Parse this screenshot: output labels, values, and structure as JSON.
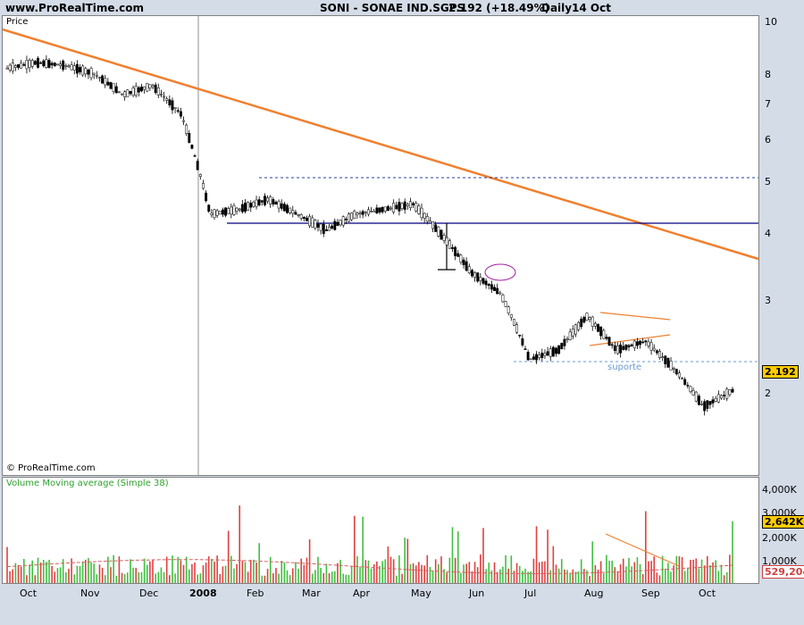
{
  "header": {
    "site": "www.ProRealTime.com",
    "instrument": "SONI - SONAE IND.SGPS",
    "quote": "2.192 (+18.49%)",
    "period": "Daily",
    "date": "14 Oct"
  },
  "price_panel": {
    "label": "Price",
    "copyright": "© ProRealTime.com",
    "last_price_tag": "2.192",
    "support_label": "suporte"
  },
  "volume_panel": {
    "label": "Volume Moving average (Simple 38)",
    "last_volume_tag": "2,642K",
    "ma_tag": "529,204"
  },
  "colors": {
    "background": "#d4dce8",
    "trendline": "#f08030",
    "support_line": "#000080",
    "support_dotted": "#6a9ad0",
    "volume_up": "#40c040",
    "volume_down": "#e04040",
    "ma_line": "#d06060",
    "tag_bg": "#ffcc00",
    "ma_tag_bg": "#ffffff"
  },
  "chart_data": [
    {
      "type": "candlestick",
      "title": "SONI - SONAE IND.SGPS",
      "ylabel": "Price",
      "y_scale": "log",
      "ylim": [
        1.55,
        10.5
      ],
      "y_ticks": [
        "10",
        "8",
        "7",
        "6",
        "5",
        "4",
        "3",
        "2"
      ],
      "x_ticks": [
        "Oct",
        "Nov",
        "Dec",
        "2008",
        "Feb",
        "Mar",
        "Apr",
        "May",
        "Jun",
        "Jul",
        "Aug",
        "Sep",
        "Oct"
      ],
      "x": [
        "2007-10-01",
        "2007-10-15",
        "2007-11-01",
        "2007-11-15",
        "2007-12-01",
        "2007-12-15",
        "2008-01-01",
        "2008-01-15",
        "2008-02-01",
        "2008-02-15",
        "2008-03-01",
        "2008-03-15",
        "2008-04-01",
        "2008-04-15",
        "2008-05-01",
        "2008-05-15",
        "2008-06-01",
        "2008-06-15",
        "2008-07-01",
        "2008-07-15",
        "2008-08-01",
        "2008-08-15",
        "2008-09-01",
        "2008-09-15",
        "2008-10-01",
        "2008-10-14"
      ],
      "close": [
        8.5,
        8.7,
        8.6,
        8.3,
        7.6,
        7.9,
        7.0,
        4.6,
        4.7,
        4.9,
        4.6,
        4.3,
        4.6,
        4.7,
        4.8,
        4.2,
        3.6,
        3.3,
        2.5,
        2.6,
        3.0,
        2.6,
        2.7,
        2.4,
        2.05,
        2.192
      ],
      "annotations": [
        {
          "type": "trendline",
          "from": [
            "2007-10-01",
            9.6
          ],
          "to": [
            "2008-10-14",
            3.5
          ]
        },
        {
          "type": "hline",
          "value": 4.2,
          "from": "2008-01-15"
        },
        {
          "type": "hline_dashed",
          "value": 5.1,
          "from": "2008-01-31"
        },
        {
          "type": "hline_dashed",
          "value": 2.35,
          "from": "2008-06-25",
          "label": "suporte"
        }
      ]
    },
    {
      "type": "bar",
      "title": "Volume Moving average (Simple 38)",
      "ylim": [
        0,
        4000000
      ],
      "y_ticks": [
        "4,000K",
        "3,000K",
        "2,000K",
        "1,000K"
      ],
      "last_volume": 2642000,
      "moving_average_38": 529204
    }
  ]
}
